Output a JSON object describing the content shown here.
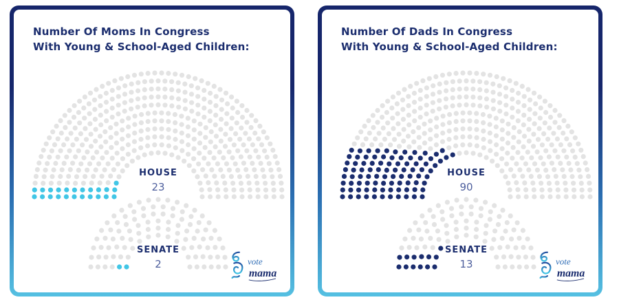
{
  "colors": {
    "navy": "#1b2d6e",
    "cyan": "#41c6e6",
    "seat_gray": "#e3e3e3",
    "count_text": "#4e5f9d",
    "border_gradient_top": "#16266b",
    "border_gradient_mid": "#2b6fb2",
    "border_gradient_bottom": "#55c0e2",
    "logo_blue": "#2f6db6"
  },
  "logo": {
    "word1": "vote",
    "word2": "mama"
  },
  "chart_data": [
    {
      "type": "parliament-dots",
      "panel": "moms",
      "title_line1": "Number Of Moms In Congress",
      "title_line2": "With Young & School-Aged Children:",
      "highlight_color": "#41c6e6",
      "seat_color": "#e3e3e3",
      "legend_position": "center-of-hemicycle",
      "charts": [
        {
          "chamber": "HOUSE",
          "highlighted": 23,
          "total_seats": 435,
          "rows": 11
        },
        {
          "chamber": "SENATE",
          "highlighted": 2,
          "total_seats": 100,
          "rows": 6
        }
      ]
    },
    {
      "type": "parliament-dots",
      "panel": "dads",
      "title_line1": "Number Of Dads In Congress",
      "title_line2": "With Young & School-Aged Children:",
      "highlight_color": "#1b2d6e",
      "seat_color": "#e3e3e3",
      "legend_position": "center-of-hemicycle",
      "charts": [
        {
          "chamber": "HOUSE",
          "highlighted": 90,
          "total_seats": 435,
          "rows": 11
        },
        {
          "chamber": "SENATE",
          "highlighted": 13,
          "total_seats": 100,
          "rows": 6
        }
      ]
    }
  ]
}
